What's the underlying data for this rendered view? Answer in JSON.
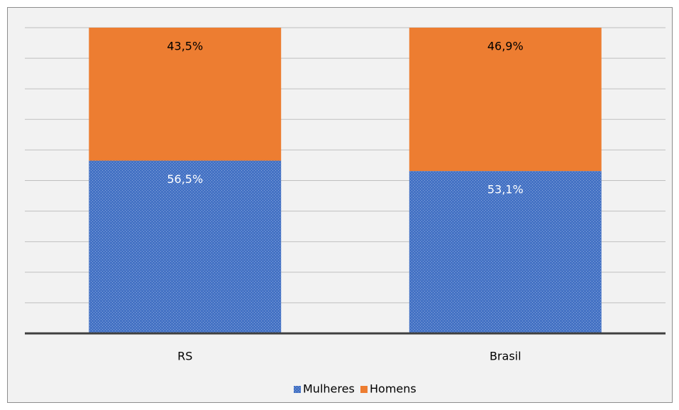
{
  "chart_data": {
    "type": "stacked_bar",
    "categories": [
      "RS",
      "Brasil"
    ],
    "series": [
      {
        "name": "Mulheres",
        "color": "#4472c4",
        "values": [
          56.5,
          53.1
        ],
        "value_labels": [
          "56,5%",
          "53,1%"
        ]
      },
      {
        "name": "Homens",
        "color": "#ed7d31",
        "values": [
          43.5,
          46.9
        ],
        "value_labels": [
          "43,5%",
          "46,9%"
        ]
      }
    ],
    "ylim": [
      0,
      100
    ],
    "yticks": [
      0,
      10,
      20,
      30,
      40,
      50,
      60,
      70,
      80,
      90,
      100
    ],
    "grid": true,
    "legend": "bottom"
  }
}
